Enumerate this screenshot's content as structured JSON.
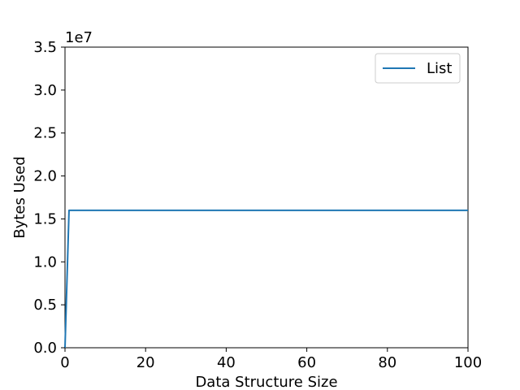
{
  "chart_data": {
    "type": "line",
    "title": "",
    "xlabel": "Data Structure Size",
    "ylabel": "Bytes Used",
    "xlim": [
      0,
      100
    ],
    "ylim": [
      0,
      35000000
    ],
    "x_ticks": [
      0,
      20,
      40,
      60,
      80,
      100
    ],
    "x_tick_labels": [
      "0",
      "20",
      "40",
      "60",
      "80",
      "100"
    ],
    "y_ticks": [
      0,
      5000000,
      10000000,
      15000000,
      20000000,
      25000000,
      30000000,
      35000000
    ],
    "y_tick_labels": [
      "0.0",
      "0.5",
      "1.0",
      "1.5",
      "2.0",
      "2.5",
      "3.0",
      "3.5"
    ],
    "y_offset_label": "1e7",
    "grid": false,
    "legend_position": "top-right",
    "series": [
      {
        "name": "List",
        "color": "#1f77b4",
        "x": [
          0,
          1,
          100
        ],
        "y": [
          0,
          16000000,
          16000000
        ]
      }
    ]
  }
}
